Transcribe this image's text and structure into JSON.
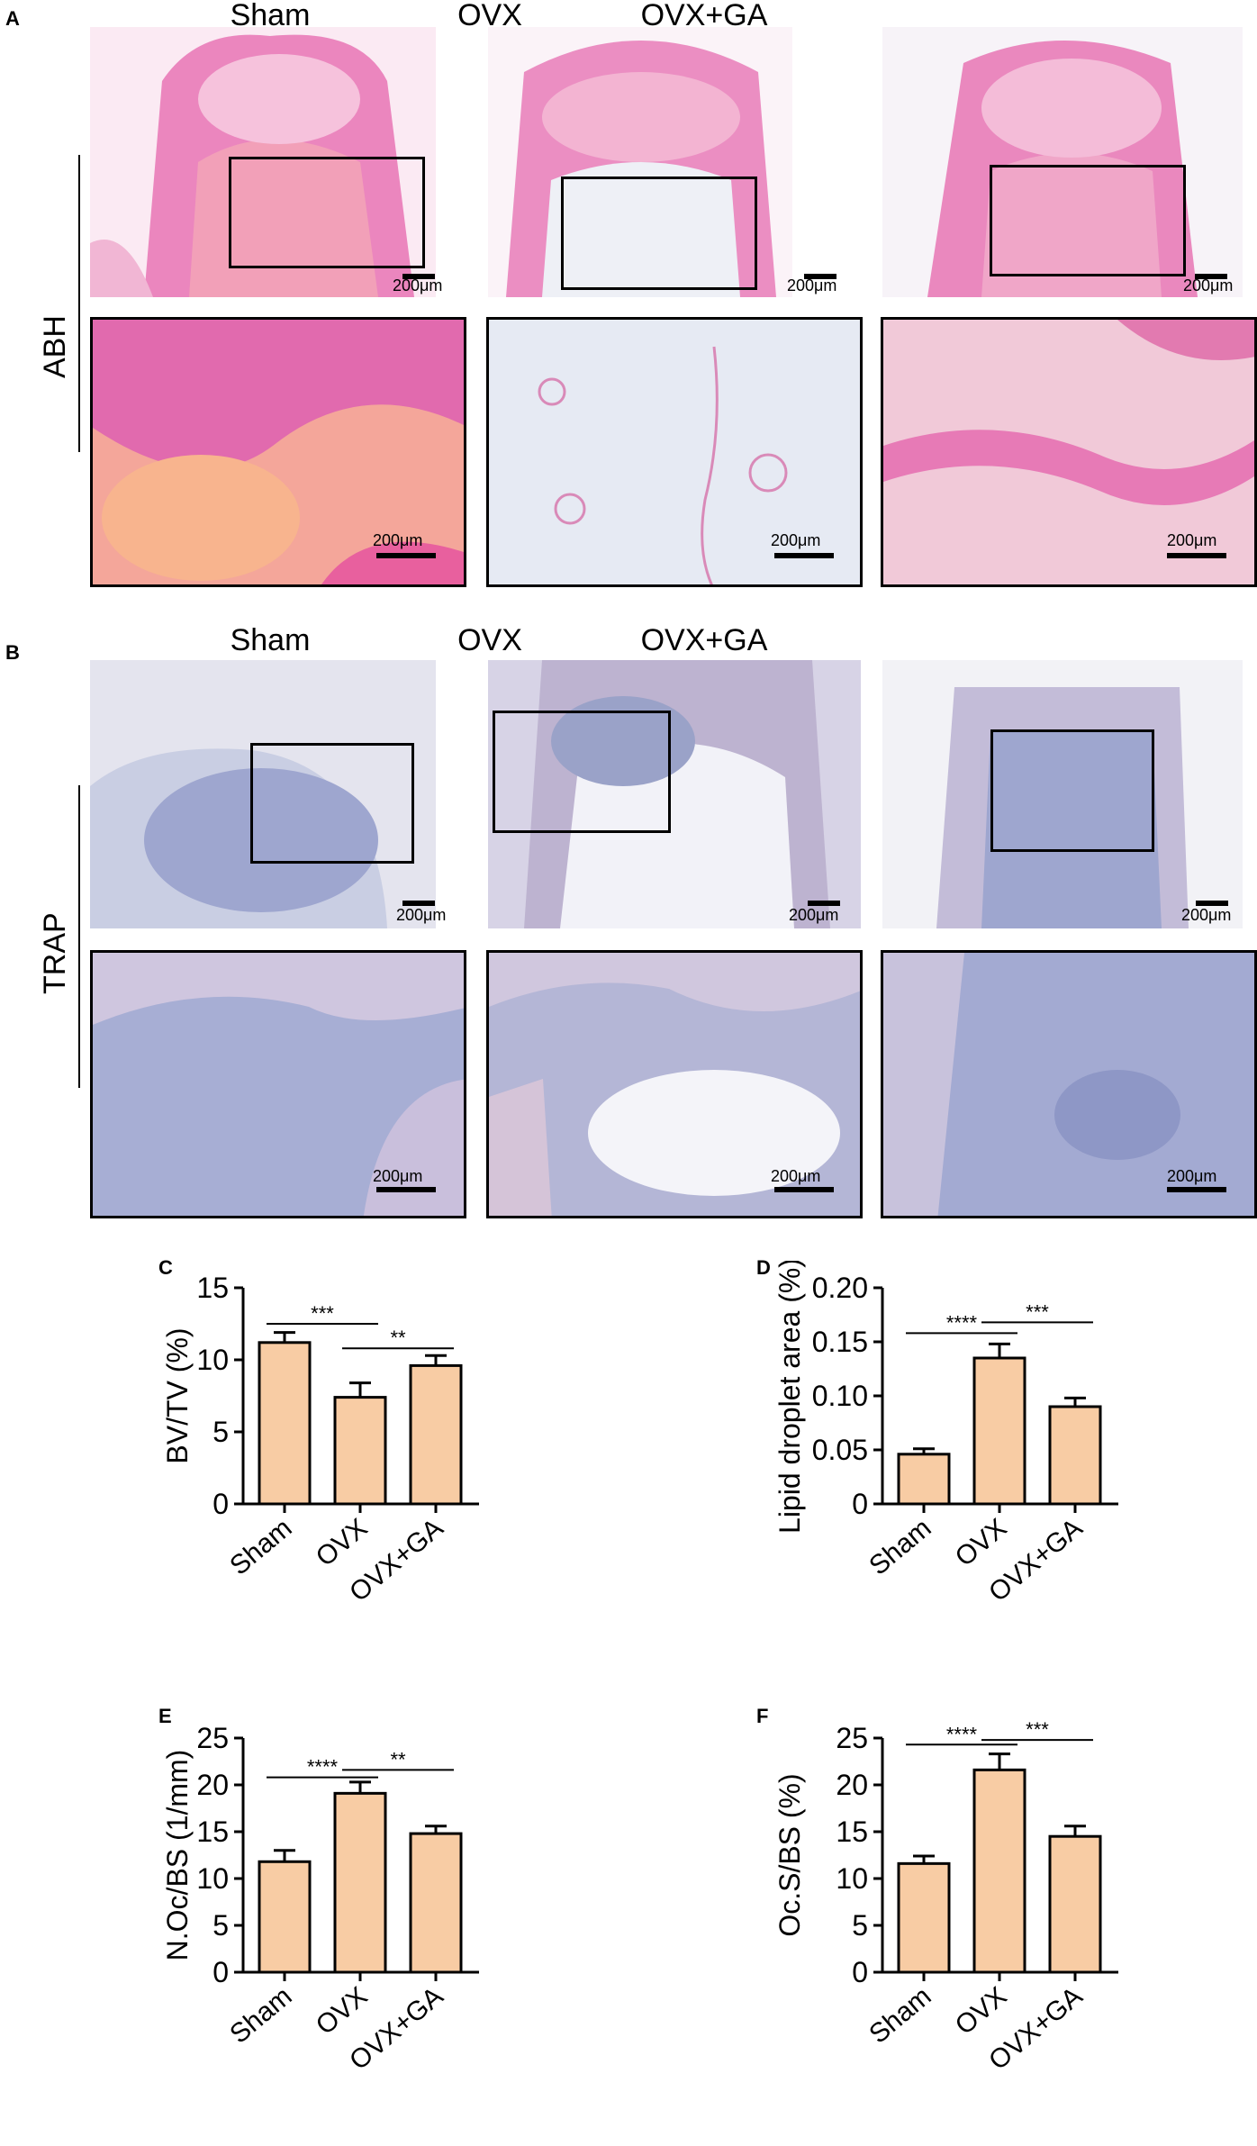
{
  "colors": {
    "bar_fill": "#f8cca4",
    "axis": "#000000",
    "abh_pink": "#e774b4",
    "trap_blue": "#9ea6cf"
  },
  "panels": {
    "A": {
      "letter": "A",
      "row_label": "ABH",
      "groups": [
        "Sham",
        "OVX",
        "OVX+GA"
      ],
      "scale_text": "200μm"
    },
    "B": {
      "letter": "B",
      "row_label": "TRAP",
      "groups": [
        "Sham",
        "OVX",
        "OVX+GA"
      ],
      "scale_text": "200μm"
    }
  },
  "chart_data": [
    {
      "panel": "C",
      "type": "bar",
      "categories": [
        "Sham",
        "OVX",
        "OVX+GA"
      ],
      "values": [
        11.2,
        7.4,
        9.6
      ],
      "errors": [
        0.7,
        1.0,
        0.7
      ],
      "ylabel": "BV/TV (%)",
      "ylim": [
        0,
        15
      ],
      "yticks": [
        "0",
        "5",
        "10",
        "15"
      ],
      "significance": [
        {
          "from": 0,
          "to": 1,
          "label": "***",
          "y": 12.5
        },
        {
          "from": 1,
          "to": 2,
          "label": "**",
          "y": 10.8
        }
      ]
    },
    {
      "panel": "D",
      "type": "bar",
      "categories": [
        "Sham",
        "OVX",
        "OVX+GA"
      ],
      "values": [
        0.046,
        0.135,
        0.09
      ],
      "errors": [
        0.005,
        0.013,
        0.008
      ],
      "ylabel": "Lipid droplet area (%)",
      "ylim": [
        0,
        0.2
      ],
      "yticks": [
        "0",
        "0.05",
        "0.10",
        "0.15",
        "0.20"
      ],
      "significance": [
        {
          "from": 0,
          "to": 1,
          "label": "****",
          "y": 0.158
        },
        {
          "from": 1,
          "to": 2,
          "label": "***",
          "y": 0.168
        }
      ]
    },
    {
      "panel": "E",
      "type": "bar",
      "categories": [
        "Sham",
        "OVX",
        "OVX+GA"
      ],
      "values": [
        11.8,
        19.1,
        14.8
      ],
      "errors": [
        1.2,
        1.2,
        0.8
      ],
      "ylabel": "N.Oc/BS (1/mm)",
      "ylim": [
        0,
        25
      ],
      "yticks": [
        "0",
        "5",
        "10",
        "15",
        "20",
        "25"
      ],
      "significance": [
        {
          "from": 0,
          "to": 1,
          "label": "****",
          "y": 20.8
        },
        {
          "from": 1,
          "to": 2,
          "label": "**",
          "y": 21.6
        }
      ]
    },
    {
      "panel": "F",
      "type": "bar",
      "categories": [
        "Sham",
        "OVX",
        "OVX+GA"
      ],
      "values": [
        11.6,
        21.6,
        14.5
      ],
      "errors": [
        0.8,
        1.7,
        1.1
      ],
      "ylabel": "Oc.S/BS (%)",
      "ylim": [
        0,
        25
      ],
      "yticks": [
        "0",
        "5",
        "10",
        "15",
        "20",
        "25"
      ],
      "significance": [
        {
          "from": 0,
          "to": 1,
          "label": "****",
          "y": 24.3
        },
        {
          "from": 1,
          "to": 2,
          "label": "***",
          "y": 24.8
        }
      ]
    }
  ]
}
